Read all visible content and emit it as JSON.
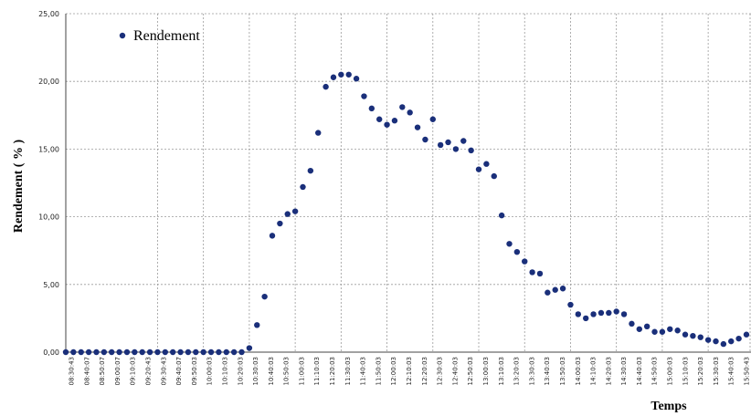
{
  "chart_data": {
    "type": "scatter",
    "ylabel": "Rendement ( % )",
    "xlabel": "Temps",
    "ylim": [
      0,
      25
    ],
    "y_ticks": [
      "0,00",
      "5,00",
      "10,00",
      "15,00",
      "20,00",
      "25,00"
    ],
    "grid": true,
    "legend_position": "top-left",
    "x_tick_labels": [
      "08:30:43",
      "08:40:07",
      "08:50:07",
      "09:00:07",
      "09:10:03",
      "09:20:43",
      "09:30:43",
      "09:40:07",
      "09:50:03",
      "10:00:03",
      "10:10:03",
      "10:20:03",
      "10:30:03",
      "10:40:03",
      "10:50:03",
      "11:00:03",
      "11:10:03",
      "11:20:03",
      "11:30:03",
      "11:40:03",
      "11:50:03",
      "12:00:03",
      "12:10:03",
      "12:20:03",
      "12:30:03",
      "12:40:03",
      "12:50:03",
      "13:00:03",
      "13:10:03",
      "13:20:03",
      "13:30:03",
      "13:40:03",
      "13:50:03",
      "14:00:03",
      "14:10:03",
      "14:20:03",
      "14:30:03",
      "14:40:03",
      "14:50:03",
      "15:00:03",
      "15:10:03",
      "15:20:03",
      "15:30:03",
      "15:40:03",
      "15:50:43"
    ],
    "series": [
      {
        "name": "Rendement",
        "color": "#1a2f7a",
        "x": [
          "08:30",
          "08:35",
          "08:40",
          "08:45",
          "08:50",
          "08:55",
          "09:00",
          "09:05",
          "09:10",
          "09:15",
          "09:20",
          "09:25",
          "09:30",
          "09:35",
          "09:40",
          "09:45",
          "09:50",
          "09:55",
          "10:00",
          "10:05",
          "10:10",
          "10:15",
          "10:20",
          "10:25",
          "10:30",
          "10:35",
          "10:40",
          "10:45",
          "10:50",
          "10:55",
          "11:00",
          "11:05",
          "11:10",
          "11:15",
          "11:20",
          "11:25",
          "11:30",
          "11:35",
          "11:40",
          "11:45",
          "11:50",
          "11:55",
          "12:00",
          "12:05",
          "12:10",
          "12:15",
          "12:20",
          "12:25",
          "12:30",
          "12:35",
          "12:40",
          "12:45",
          "12:50",
          "12:55",
          "13:00",
          "13:05",
          "13:10",
          "13:15",
          "13:20",
          "13:25",
          "13:30",
          "13:35",
          "13:40",
          "13:45",
          "13:50",
          "13:55",
          "14:00",
          "14:05",
          "14:10",
          "14:15",
          "14:20",
          "14:25",
          "14:30",
          "14:35",
          "14:40",
          "14:45",
          "14:50",
          "14:55",
          "15:00",
          "15:05",
          "15:10",
          "15:15",
          "15:20",
          "15:25",
          "15:30",
          "15:35",
          "15:40",
          "15:45",
          "15:50",
          "15:55"
        ],
        "y": [
          0,
          0,
          0,
          0,
          0,
          0,
          0,
          0,
          0,
          0,
          0,
          0,
          0,
          0,
          0,
          0,
          0,
          0,
          0,
          0,
          0,
          0,
          0,
          0,
          0.3,
          2.0,
          4.1,
          8.6,
          9.5,
          10.2,
          10.4,
          12.2,
          13.4,
          16.2,
          19.6,
          20.3,
          20.5,
          20.5,
          20.2,
          18.9,
          18.0,
          17.2,
          16.8,
          17.1,
          18.1,
          17.7,
          16.6,
          15.7,
          17.2,
          15.3,
          15.5,
          15.0,
          15.6,
          14.9,
          13.5,
          13.9,
          13.0,
          10.1,
          8.0,
          7.4,
          6.7,
          5.9,
          5.8,
          4.4,
          4.6,
          4.7,
          3.5,
          2.8,
          2.5,
          2.8,
          2.9,
          2.9,
          3.0,
          2.8,
          2.1,
          1.7,
          1.9,
          1.5,
          1.5,
          1.7,
          1.6,
          1.3,
          1.2,
          1.1,
          0.9,
          0.8,
          0.6,
          0.8,
          1.0,
          1.3
        ]
      }
    ]
  }
}
